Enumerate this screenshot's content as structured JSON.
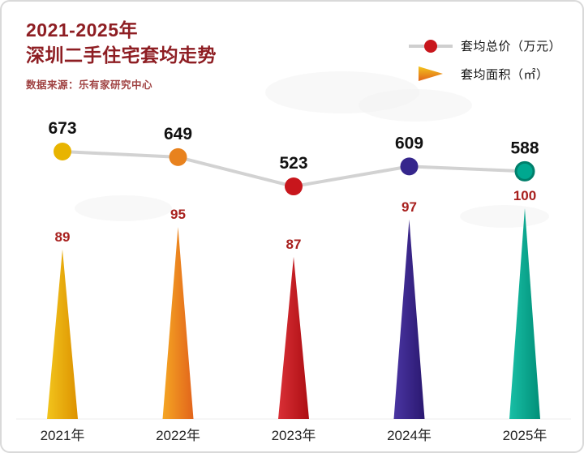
{
  "header": {
    "title_line1": "2021-2025年",
    "title_line2": "深圳二手住宅套均走势",
    "source": "数据来源：乐有家研究中心"
  },
  "legend": {
    "price_label": "套均总价（万元）",
    "area_label": "套均面积（㎡）"
  },
  "chart_data": {
    "type": "line",
    "title": "2021-2025年深圳二手住宅套均走势",
    "categories": [
      "2021年",
      "2022年",
      "2023年",
      "2024年",
      "2025年"
    ],
    "series": [
      {
        "name": "套均总价（万元）",
        "type": "line-with-dots",
        "values": [
          673,
          649,
          523,
          609,
          588
        ]
      },
      {
        "name": "套均面积（㎡）",
        "type": "spike",
        "values": [
          89,
          95,
          87,
          97,
          100
        ]
      }
    ],
    "colors": [
      "#E8B400",
      "#E8821E",
      "#C8161C",
      "#35268C",
      "#00A890"
    ],
    "dot_rings": [
      "none",
      "none",
      "none",
      "none",
      "#007F6B"
    ],
    "spike_gradients": [
      [
        "#F2C41C",
        "#DD9200"
      ],
      [
        "#F5A623",
        "#E2641B"
      ],
      [
        "#D93036",
        "#AD0E13"
      ],
      [
        "#4A35A2",
        "#2A1870"
      ],
      [
        "#19BFA6",
        "#008F78"
      ]
    ],
    "line_color": "#d2d2d2",
    "value_label_color": "#A8201E",
    "dot_label_color": "#111111",
    "axis_label_color": "#222222",
    "legend_position": "top-right",
    "grid": false,
    "xlabel": "",
    "ylabel": ""
  }
}
